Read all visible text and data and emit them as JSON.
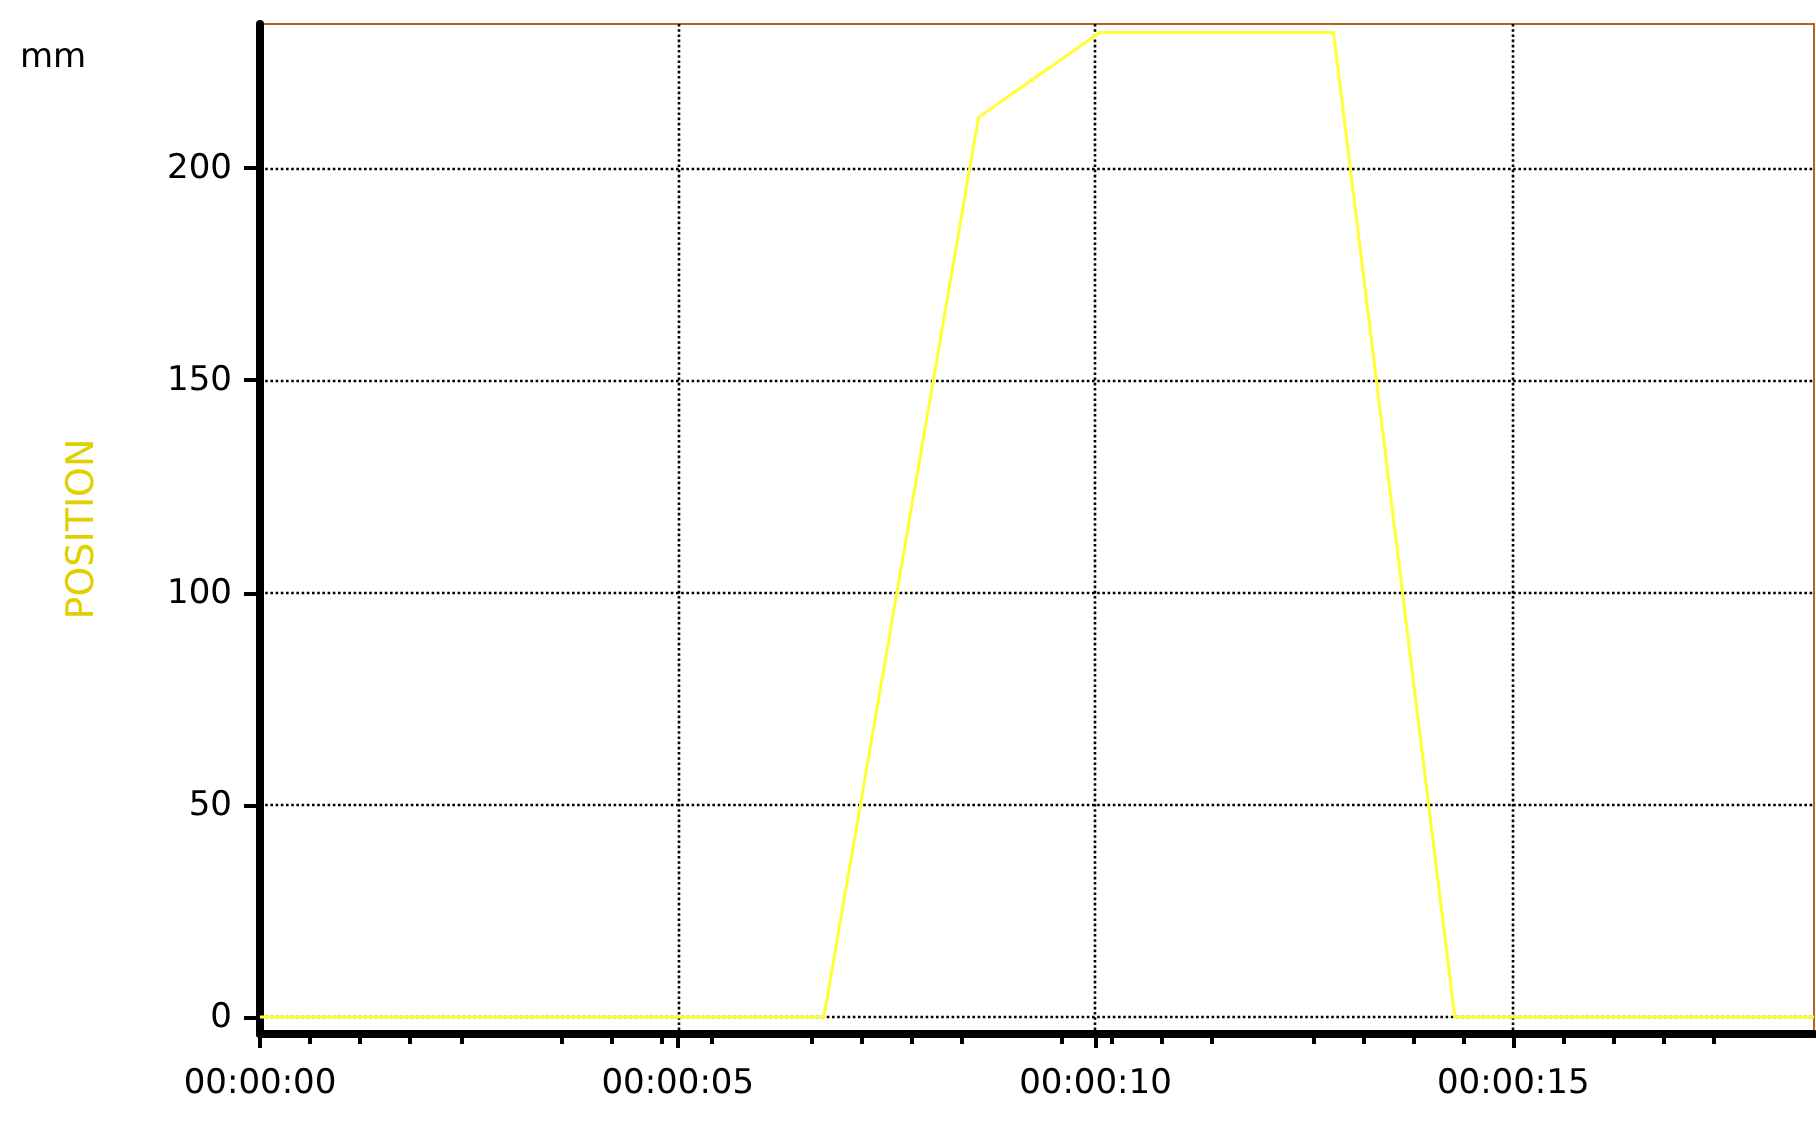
{
  "chart_data": {
    "type": "line",
    "ylabel": "POSITION",
    "annotations": [
      "mm"
    ],
    "x": [
      0,
      6.75,
      8.6,
      10.05,
      12.85,
      14.3,
      18.6
    ],
    "series": [
      {
        "color": "#ffff33",
        "values": [
          0,
          0,
          212,
          232,
          232,
          0,
          0
        ]
      }
    ],
    "xlim": [
      0,
      18.6
    ],
    "ylim": [
      -4,
      234
    ],
    "xticks": [
      {
        "value": 0,
        "label": "00:00:00"
      },
      {
        "value": 5,
        "label": "00:00:05"
      },
      {
        "value": 10,
        "label": "00:00:10"
      },
      {
        "value": 15,
        "label": "00:00:15"
      }
    ],
    "yticks": [
      0,
      50,
      100,
      150,
      200
    ],
    "grid": true,
    "marker": "none",
    "line_style": "solid"
  }
}
